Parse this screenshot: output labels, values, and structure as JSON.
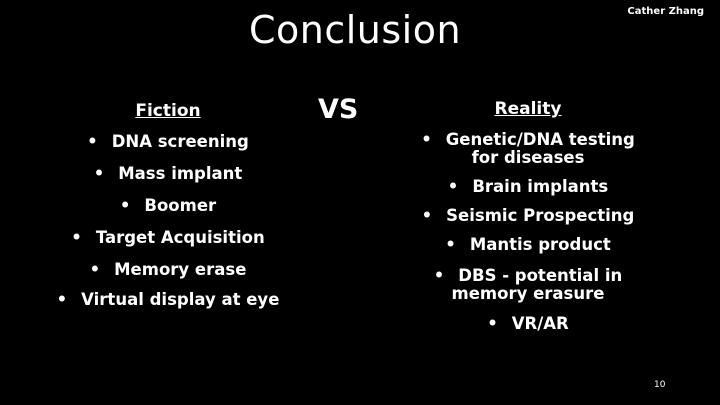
{
  "slide": {
    "title": "Conclusion",
    "author": "Cather Zhang",
    "vs": "VS",
    "page_number": "10",
    "bullet": "•",
    "fiction": {
      "heading": "Fiction",
      "items": [
        "DNA screening",
        "Mass implant",
        "Boomer",
        "Target Acquisition",
        "Memory erase",
        "Virtual display at eye"
      ]
    },
    "reality": {
      "heading": "Reality",
      "items": [
        "Genetic/DNA testing for diseases",
        "Brain implants",
        "Seismic Prospecting",
        "Mantis product",
        "DBS - potential in memory erasure",
        "VR/AR"
      ]
    }
  }
}
